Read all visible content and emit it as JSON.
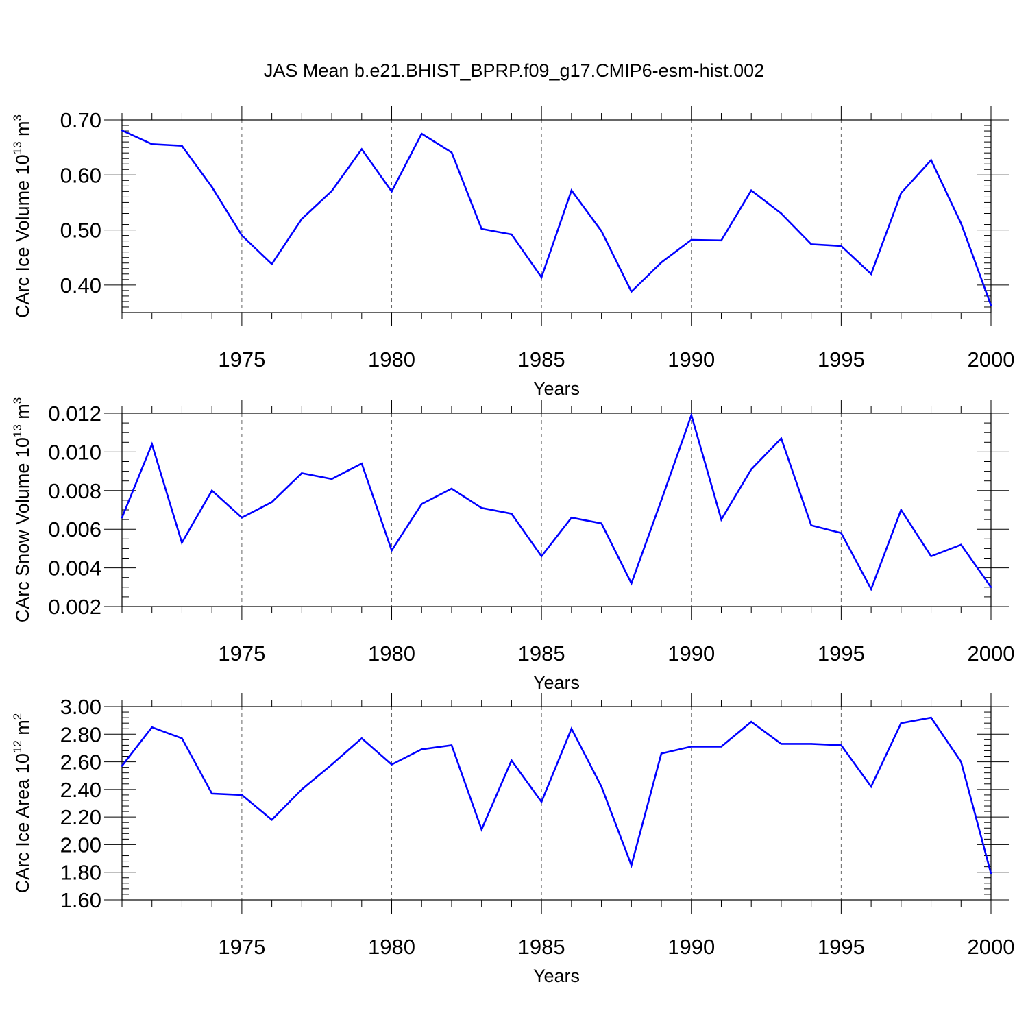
{
  "figure_title": "JAS Mean b.e21.BHIST_BPRP.f09_g17.CMIP6-esm-hist.002",
  "chart_data": [
    {
      "type": "line",
      "title": "JAS Mean b.e21.BHIST_BPRP.f09_g17.CMIP6-esm-hist.002",
      "ylabel": {
        "main": "CArc Ice Volume 10",
        "exp": "13",
        "unit": " m",
        "unit_exp": "3"
      },
      "xlabel": "Years",
      "xlim": [
        1971,
        2000
      ],
      "ylim": [
        0.35,
        0.7
      ],
      "yticks": [
        0.4,
        0.5,
        0.6,
        0.7
      ],
      "ytick_labels": [
        "0.40",
        "0.50",
        "0.60",
        "0.70"
      ],
      "xticks": [
        1975,
        1980,
        1985,
        1990,
        1995,
        2000
      ],
      "xtick_labels": [
        "1975",
        "1980",
        "1985",
        "1990",
        "1995",
        "2000"
      ],
      "grid": "vertical dashed at major x ticks",
      "series": [
        {
          "name": "CArc Ice Volume",
          "color": "#0000ff",
          "x": [
            1971,
            1972,
            1973,
            1974,
            1975,
            1976,
            1977,
            1978,
            1979,
            1980,
            1981,
            1982,
            1983,
            1984,
            1985,
            1986,
            1987,
            1988,
            1989,
            1990,
            1991,
            1992,
            1993,
            1994,
            1995,
            1996,
            1997,
            1998,
            1999,
            2000
          ],
          "values": [
            0.681,
            0.656,
            0.653,
            0.578,
            0.49,
            0.438,
            0.52,
            0.571,
            0.647,
            0.57,
            0.675,
            0.641,
            0.502,
            0.492,
            0.414,
            0.572,
            0.498,
            0.388,
            0.441,
            0.482,
            0.481,
            0.572,
            0.53,
            0.474,
            0.471,
            0.42,
            0.567,
            0.627,
            0.512,
            0.363
          ]
        }
      ]
    },
    {
      "type": "line",
      "ylabel": {
        "main": "CArc Snow Volume 10",
        "exp": "13",
        "unit": " m",
        "unit_exp": "3"
      },
      "xlabel": "Years",
      "xlim": [
        1971,
        2000
      ],
      "ylim": [
        0.002,
        0.012
      ],
      "yticks": [
        0.002,
        0.004,
        0.006,
        0.008,
        0.01,
        0.012
      ],
      "ytick_labels": [
        "0.002",
        "0.004",
        "0.006",
        "0.008",
        "0.010",
        "0.012"
      ],
      "xticks": [
        1975,
        1980,
        1985,
        1990,
        1995,
        2000
      ],
      "xtick_labels": [
        "1975",
        "1980",
        "1985",
        "1990",
        "1995",
        "2000"
      ],
      "grid": "vertical dashed at major x ticks",
      "series": [
        {
          "name": "CArc Snow Volume",
          "color": "#0000ff",
          "x": [
            1971,
            1972,
            1973,
            1974,
            1975,
            1976,
            1977,
            1978,
            1979,
            1980,
            1981,
            1982,
            1983,
            1984,
            1985,
            1986,
            1987,
            1988,
            1989,
            1990,
            1991,
            1992,
            1993,
            1994,
            1995,
            1996,
            1997,
            1998,
            1999,
            2000
          ],
          "values": [
            0.0066,
            0.0104,
            0.0053,
            0.008,
            0.0066,
            0.0074,
            0.0089,
            0.0086,
            0.0094,
            0.0049,
            0.0073,
            0.0081,
            0.0071,
            0.0068,
            0.0046,
            0.0066,
            0.0063,
            0.0032,
            0.0075,
            0.0119,
            0.0065,
            0.0091,
            0.0107,
            0.0062,
            0.0058,
            0.0029,
            0.007,
            0.0046,
            0.0052,
            0.003
          ]
        }
      ]
    },
    {
      "type": "line",
      "ylabel": {
        "main": "CArc Ice Area 10",
        "exp": "12",
        "unit": " m",
        "unit_exp": "2"
      },
      "xlabel": "Years",
      "xlim": [
        1971,
        2000
      ],
      "ylim": [
        1.6,
        3.0
      ],
      "yticks": [
        1.6,
        1.8,
        2.0,
        2.2,
        2.4,
        2.6,
        2.8,
        3.0
      ],
      "ytick_labels": [
        "1.60",
        "1.80",
        "2.00",
        "2.20",
        "2.40",
        "2.60",
        "2.80",
        "3.00"
      ],
      "xticks": [
        1975,
        1980,
        1985,
        1990,
        1995,
        2000
      ],
      "xtick_labels": [
        "1975",
        "1980",
        "1985",
        "1990",
        "1995",
        "2000"
      ],
      "grid": "vertical dashed at major x ticks",
      "series": [
        {
          "name": "CArc Ice Area",
          "color": "#0000ff",
          "x": [
            1971,
            1972,
            1973,
            1974,
            1975,
            1976,
            1977,
            1978,
            1979,
            1980,
            1981,
            1982,
            1983,
            1984,
            1985,
            1986,
            1987,
            1988,
            1989,
            1990,
            1991,
            1992,
            1993,
            1994,
            1995,
            1996,
            1997,
            1998,
            1999,
            2000
          ],
          "values": [
            2.57,
            2.85,
            2.77,
            2.37,
            2.36,
            2.18,
            2.4,
            2.58,
            2.77,
            2.58,
            2.69,
            2.72,
            2.11,
            2.61,
            2.31,
            2.84,
            2.42,
            1.85,
            2.66,
            2.71,
            2.71,
            2.89,
            2.73,
            2.73,
            2.72,
            2.42,
            2.88,
            2.92,
            2.6,
            1.79
          ]
        }
      ]
    }
  ]
}
